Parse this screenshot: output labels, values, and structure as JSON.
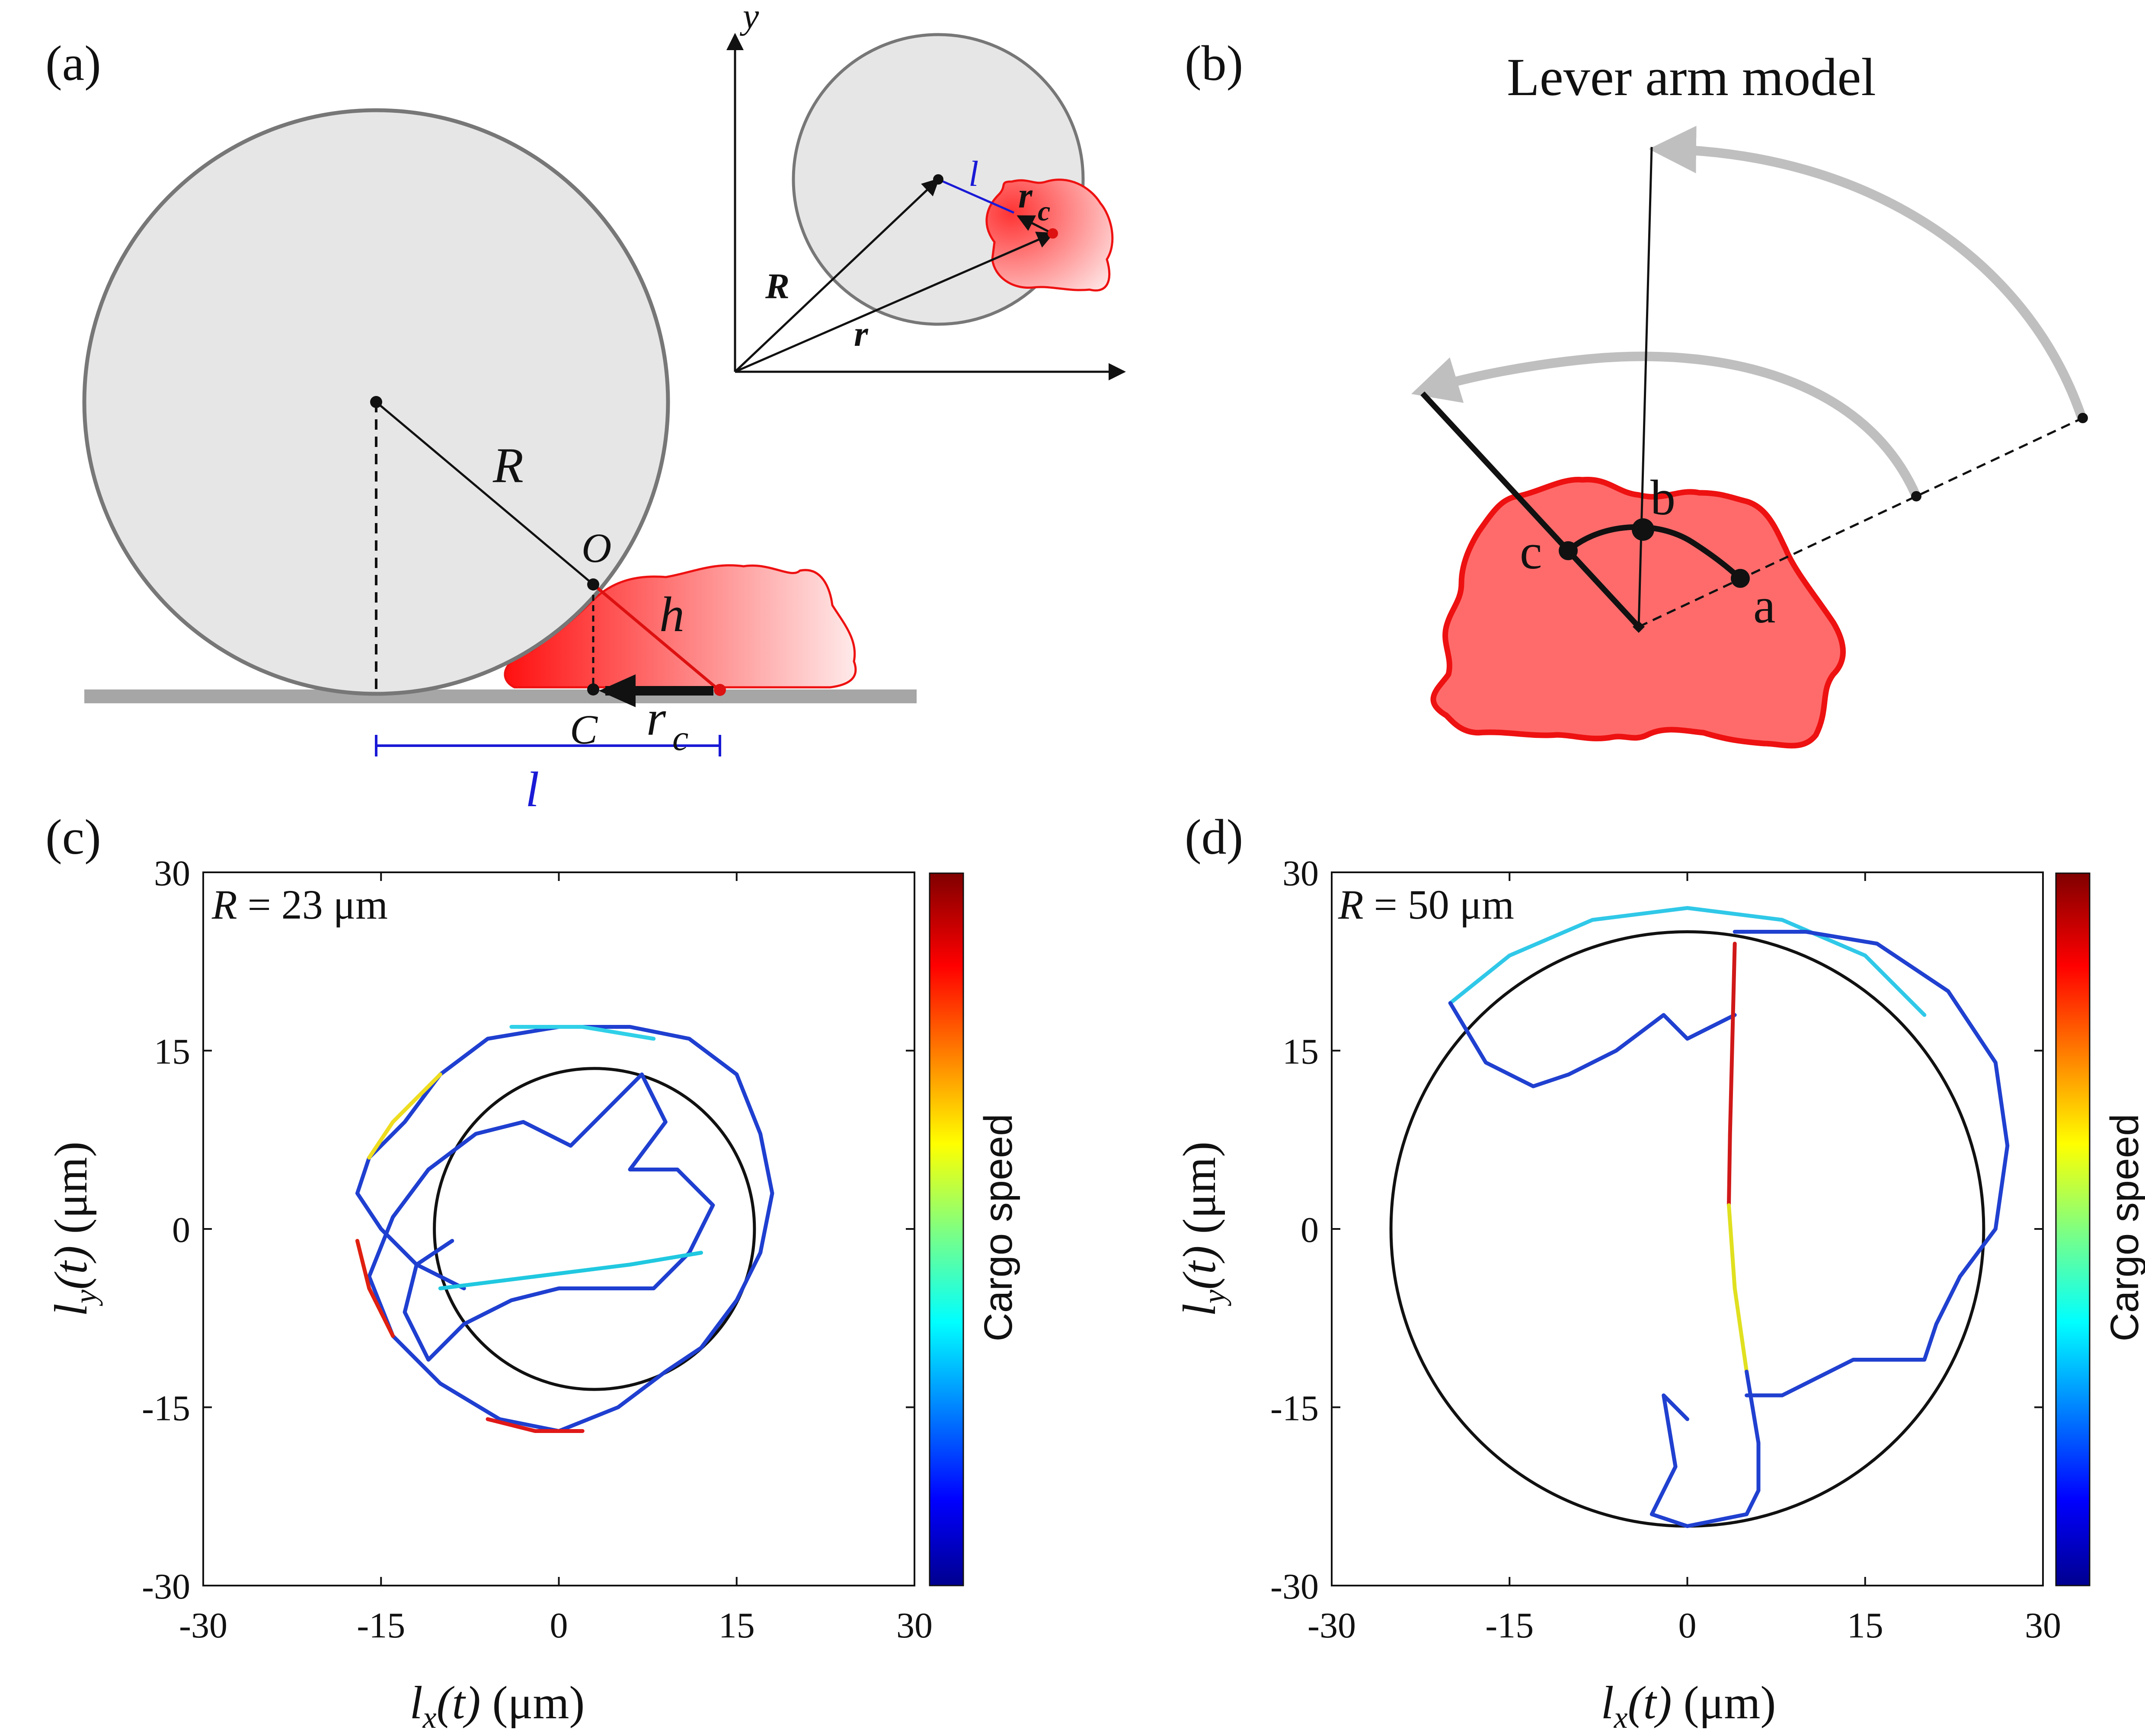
{
  "panels": {
    "a": {
      "label": "(a)",
      "R": "R",
      "O": "O",
      "h": "h",
      "C": "C",
      "rc": "r",
      "rc_sub": "c",
      "l": "l",
      "inset": {
        "y": "y",
        "l": "l",
        "rc": "r",
        "rc_sub": "c",
        "R": "R",
        "r": "r"
      }
    },
    "b": {
      "label": "(b)",
      "title": "Lever arm  model",
      "a": "a",
      "b": "b",
      "c": "c"
    },
    "c": {
      "label": "(c)",
      "annotation_sym": "R",
      "annotation_val": " = 23 μm"
    },
    "d": {
      "label": "(d)",
      "annotation_sym": "R",
      "annotation_val": " = 50 μm"
    }
  },
  "colorbar_label": "Cargo speed",
  "colors": {
    "cell": "#ff6b6b",
    "cell_edge": "#ee1111",
    "bead": "#e6e6e6",
    "bead_edge": "#777777",
    "arrow_gray": "#bfbfbf",
    "blue_label": "#1a1ad6"
  },
  "chart_data": [
    {
      "type": "line",
      "panel": "c",
      "title": "",
      "xlabel": "l_x(t) (μm)",
      "ylabel": "l_y(t) (μm)",
      "xlim": [
        -30,
        30
      ],
      "ylim": [
        -30,
        30
      ],
      "xticks": [
        -30,
        -15,
        0,
        15,
        30
      ],
      "yticks": [
        -30,
        -15,
        0,
        15,
        30
      ],
      "xtick_labels": [
        "-30",
        "-15",
        "0",
        "15",
        "30"
      ],
      "ytick_labels": [
        "-30",
        "-15",
        "0",
        "15",
        "30"
      ],
      "circle": {
        "center": [
          3,
          0
        ],
        "radius": 13.5
      },
      "colorbar": {
        "label": "Cargo speed"
      },
      "series": [
        {
          "name": "trajectory",
          "color": "#1f3fd0",
          "points": [
            [
              -8,
              -5
            ],
            [
              -12,
              -3
            ],
            [
              -15,
              0
            ],
            [
              -17,
              3
            ],
            [
              -16,
              6
            ],
            [
              -13,
              9
            ],
            [
              -10,
              13
            ],
            [
              -6,
              16
            ],
            [
              0,
              17
            ],
            [
              6,
              17
            ],
            [
              11,
              16
            ],
            [
              15,
              13
            ],
            [
              17,
              8
            ],
            [
              18,
              3
            ],
            [
              17,
              -2
            ],
            [
              15,
              -6
            ],
            [
              12,
              -10
            ],
            [
              9,
              -12
            ],
            [
              5,
              -15
            ],
            [
              0,
              -17
            ],
            [
              -5,
              -16
            ],
            [
              -10,
              -13
            ],
            [
              -14,
              -9
            ],
            [
              -16,
              -4
            ],
            [
              -14,
              1
            ],
            [
              -11,
              5
            ],
            [
              -7,
              8
            ],
            [
              -3,
              9
            ],
            [
              1,
              7
            ],
            [
              4,
              10
            ],
            [
              7,
              13
            ],
            [
              9,
              9
            ],
            [
              6,
              5
            ],
            [
              10,
              5
            ],
            [
              13,
              2
            ],
            [
              11,
              -2
            ],
            [
              8,
              -5
            ],
            [
              4,
              -5
            ],
            [
              0,
              -5
            ],
            [
              -4,
              -6
            ],
            [
              -8,
              -8
            ],
            [
              -11,
              -11
            ],
            [
              -13,
              -7
            ],
            [
              -12,
              -3
            ],
            [
              -9,
              -1
            ]
          ]
        },
        {
          "name": "fast-yellow",
          "color": "#eedd20",
          "points": [
            [
              -16,
              6
            ],
            [
              -14,
              9
            ],
            [
              -10,
              13
            ]
          ]
        },
        {
          "name": "fast-red",
          "color": "#e02010",
          "points": [
            [
              -17,
              -1
            ],
            [
              -16,
              -5
            ],
            [
              -14,
              -9
            ]
          ]
        },
        {
          "name": "fast-bottom",
          "color": "#e01818",
          "points": [
            [
              -6,
              -16
            ],
            [
              -2,
              -17
            ],
            [
              2,
              -17
            ]
          ]
        },
        {
          "name": "cyan-chord",
          "color": "#20c8e0",
          "points": [
            [
              -10,
              -5
            ],
            [
              -2,
              -4
            ],
            [
              6,
              -3
            ],
            [
              12,
              -2
            ]
          ]
        },
        {
          "name": "cyan-top",
          "color": "#30d0e8",
          "points": [
            [
              -4,
              17
            ],
            [
              2,
              17
            ],
            [
              8,
              16
            ]
          ]
        }
      ]
    },
    {
      "type": "line",
      "panel": "d",
      "title": "",
      "xlabel": "l_x(t) (μm)",
      "ylabel": "l_y(t) (μm)",
      "xlim": [
        -30,
        30
      ],
      "ylim": [
        -30,
        30
      ],
      "xticks": [
        -30,
        -15,
        0,
        15,
        30
      ],
      "yticks": [
        -30,
        -15,
        0,
        15,
        30
      ],
      "xtick_labels": [
        "-30",
        "-15",
        "0",
        "15",
        "30"
      ],
      "ytick_labels": [
        "-30",
        "-15",
        "0",
        "15",
        "30"
      ],
      "circle": {
        "center": [
          0,
          0
        ],
        "radius": 25
      },
      "colorbar": {
        "label": "Cargo speed"
      },
      "series": [
        {
          "name": "arc-top",
          "color": "#30c8e8",
          "points": [
            [
              -20,
              19
            ],
            [
              -15,
              23
            ],
            [
              -8,
              26
            ],
            [
              0,
              27
            ],
            [
              8,
              26
            ],
            [
              15,
              23
            ],
            [
              20,
              18
            ]
          ]
        },
        {
          "name": "left-wander",
          "color": "#2040d0",
          "points": [
            [
              -20,
              19
            ],
            [
              -17,
              14
            ],
            [
              -13,
              12
            ],
            [
              -10,
              13
            ],
            [
              -6,
              15
            ],
            [
              -2,
              18
            ],
            [
              0,
              16
            ],
            [
              4,
              18
            ]
          ]
        },
        {
          "name": "right-arc",
          "color": "#2040d0",
          "points": [
            [
              4,
              25
            ],
            [
              10,
              25
            ],
            [
              16,
              24
            ],
            [
              22,
              20
            ],
            [
              26,
              14
            ],
            [
              27,
              7
            ],
            [
              26,
              0
            ],
            [
              23,
              -4
            ],
            [
              21,
              -8
            ],
            [
              20,
              -11
            ],
            [
              14,
              -11
            ],
            [
              8,
              -14
            ],
            [
              5,
              -14
            ]
          ]
        },
        {
          "name": "vertical-fast",
          "color": "#d01818",
          "points": [
            [
              4,
              24
            ],
            [
              3.8,
              16
            ],
            [
              3.6,
              8
            ],
            [
              3.5,
              2
            ]
          ]
        },
        {
          "name": "vertical-mid",
          "color": "#e0e020",
          "points": [
            [
              3.5,
              2
            ],
            [
              4,
              -5
            ],
            [
              5,
              -12
            ]
          ]
        },
        {
          "name": "bottom-loop",
          "color": "#2040d0",
          "points": [
            [
              5,
              -12
            ],
            [
              6,
              -18
            ],
            [
              6,
              -22
            ],
            [
              5,
              -24
            ],
            [
              0,
              -25
            ],
            [
              -3,
              -24
            ],
            [
              -1,
              -20
            ],
            [
              -2,
              -14
            ],
            [
              0,
              -16
            ]
          ]
        }
      ]
    }
  ]
}
